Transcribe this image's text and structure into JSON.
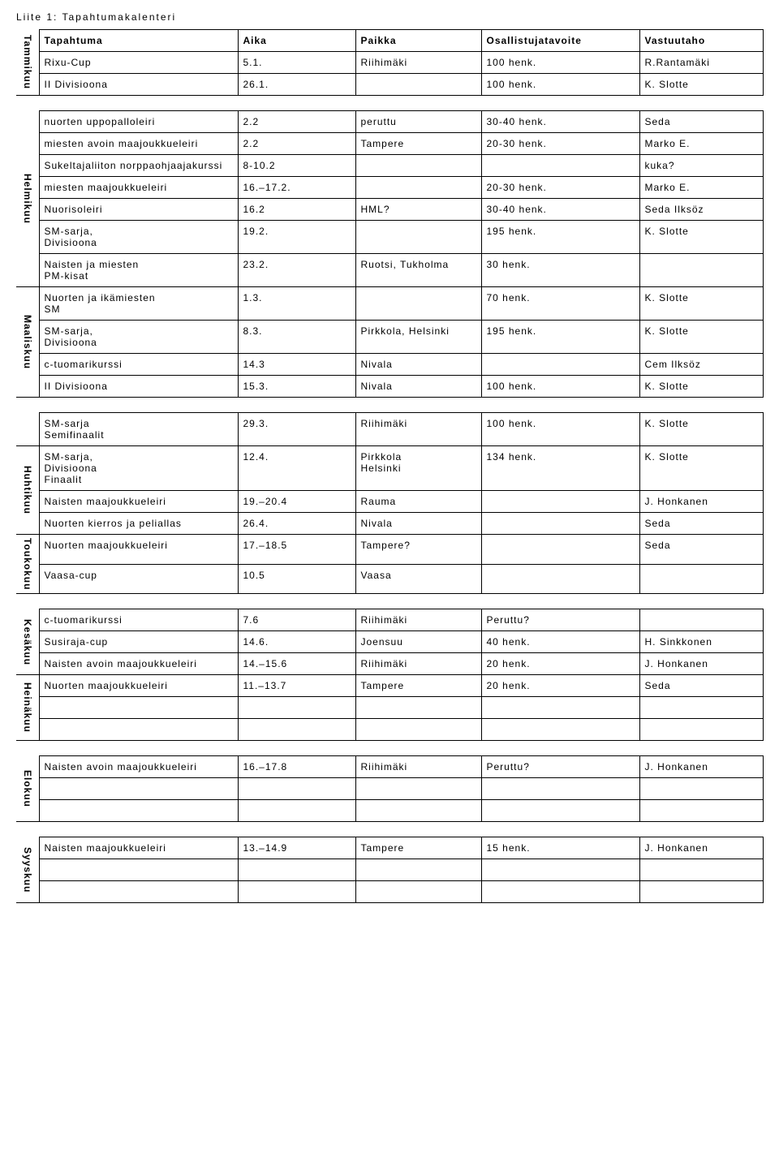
{
  "title": "Liite 1: Tapahtumakalenteri",
  "headers": {
    "event": "Tapahtuma",
    "time": "Aika",
    "place": "Paikka",
    "goal": "Osallistujatavoite",
    "responsible": "Vastuutaho"
  },
  "months": {
    "tammikuu": "Tammikuu",
    "helmikuu": "Helmikuu",
    "maaliskuu": "Maaliskuu",
    "huhtikuu": "Huhtikuu",
    "toukokuu": "Toukokuu",
    "kesakuu": "Kesäkuu",
    "heinakuu": "Heinäkuu",
    "elokuu": "Elokuu",
    "syyskuu": "Syyskuu"
  },
  "sec1": {
    "r0": {
      "event": "Rixu-Cup",
      "time": "5.1.",
      "place": "Riihimäki",
      "goal": "100 henk.",
      "resp": "R.Rantamäki"
    },
    "r1": {
      "event": "II Divisioona",
      "time": "26.1.",
      "place": "",
      "goal": "100 henk.",
      "resp": "K. Slotte"
    }
  },
  "sec2": {
    "r0": {
      "event": "nuorten uppopalloleiri",
      "time": "2.2",
      "place": "peruttu",
      "goal": "30-40 henk.",
      "resp": "Seda"
    },
    "r1": {
      "event": "miesten avoin maajoukkueleiri",
      "time": "2.2",
      "place": "Tampere",
      "goal": "20-30 henk.",
      "resp": "Marko E."
    },
    "r2": {
      "event": "Sukeltajaliiton norppaohjaajakurssi",
      "time": "8-10.2",
      "place": "",
      "goal": "",
      "resp": "kuka?"
    },
    "r3": {
      "event": "miesten maajoukkueleiri",
      "time": "16.–17.2.",
      "place": "",
      "goal": "20-30 henk.",
      "resp": "Marko E."
    },
    "r4": {
      "event": "Nuorisoleiri",
      "time": "16.2",
      "place": "HML?",
      "goal": "30-40 henk.",
      "resp": "Seda Ilksöz"
    },
    "r5": {
      "event": "SM-sarja,\nDivisioona",
      "time": "19.2.",
      "place": "",
      "goal": "195 henk.",
      "resp": "K. Slotte"
    },
    "r6": {
      "event": "Naisten ja miesten\nPM-kisat",
      "time": "23.2.",
      "place": "Ruotsi, Tukholma",
      "goal": "30 henk.",
      "resp": ""
    },
    "r7": {
      "event": "Nuorten ja ikämiesten\nSM",
      "time": "1.3.",
      "place": "",
      "goal": "70 henk.",
      "resp": "K. Slotte"
    },
    "r8": {
      "event": "SM-sarja,\nDivisioona",
      "time": "8.3.",
      "place": "Pirkkola, Helsinki",
      "goal": "195 henk.",
      "resp": "K. Slotte"
    },
    "r9": {
      "event": "c-tuomarikurssi",
      "time": "14.3",
      "place": "Nivala",
      "goal": "",
      "resp": "Cem Ilksöz"
    },
    "r10": {
      "event": "II Divisioona",
      "time": "15.3.",
      "place": " Nivala",
      "goal": "100 henk.",
      "resp": "K. Slotte"
    }
  },
  "sec3": {
    "r0": {
      "event": "SM-sarja\nSemifinaalit",
      "time": "29.3.",
      "place": "Riihimäki",
      "goal": "100 henk.",
      "resp": "K. Slotte"
    },
    "r1": {
      "event": "SM-sarja,\nDivisioona\nFinaalit",
      "time": "12.4.",
      "place": "Pirkkola\nHelsinki",
      "goal": "134 henk.",
      "resp": "K. Slotte"
    },
    "r2": {
      "event": "Naisten maajoukkueleiri",
      "time": "19.–20.4",
      "place": "Rauma",
      "goal": "",
      "resp": "J. Honkanen"
    },
    "r3": {
      "event": "Nuorten kierros ja peliallas",
      "time": "26.4.",
      "place": "Nivala",
      "goal": "",
      "resp": "Seda"
    },
    "r4": {
      "event": "Nuorten maajoukkueleiri",
      "time": "17.–18.5",
      "place": "Tampere?",
      "goal": "",
      "resp": "Seda"
    },
    "r5": {
      "event": "Vaasa-cup",
      "time": "10.5",
      "place": "Vaasa",
      "goal": "",
      "resp": ""
    }
  },
  "sec4": {
    "r0": {
      "event": "c-tuomarikurssi",
      "time": "7.6",
      "place": "Riihimäki",
      "goal": "Peruttu?",
      "resp": ""
    },
    "r1": {
      "event": "Susiraja-cup",
      "time": "14.6.",
      "place": "Joensuu",
      "goal": "40 henk.",
      "resp": "H. Sinkkonen"
    },
    "r2": {
      "event": "Naisten avoin maajoukkueleiri",
      "time": "14.–15.6",
      "place": "Riihimäki",
      "goal": "20 henk.",
      "resp": "J. Honkanen"
    },
    "r3": {
      "event": "Nuorten maajoukkueleiri",
      "time": "11.–13.7",
      "place": "Tampere",
      "goal": "20 henk.",
      "resp": "Seda"
    },
    "r4": {
      "event": "",
      "time": "",
      "place": "",
      "goal": "",
      "resp": ""
    },
    "r5": {
      "event": "",
      "time": "",
      "place": "",
      "goal": "",
      "resp": ""
    }
  },
  "sec5": {
    "r0": {
      "event": "Naisten avoin maajoukkueleiri",
      "time": "16.–17.8",
      "place": "Riihimäki",
      "goal": "Peruttu?",
      "resp": "J. Honkanen"
    },
    "r1": {
      "event": "",
      "time": "",
      "place": "",
      "goal": "",
      "resp": ""
    },
    "r2": {
      "event": "",
      "time": "",
      "place": "",
      "goal": "",
      "resp": ""
    }
  },
  "sec6": {
    "r0": {
      "event": "Naisten maajoukkueleiri",
      "time": "13.–14.9",
      "place": "Tampere",
      "goal": "15 henk.",
      "resp": "J. Honkanen"
    },
    "r1": {
      "event": "",
      "time": "",
      "place": "",
      "goal": "",
      "resp": ""
    },
    "r2": {
      "event": "",
      "time": "",
      "place": "",
      "goal": "",
      "resp": ""
    }
  }
}
